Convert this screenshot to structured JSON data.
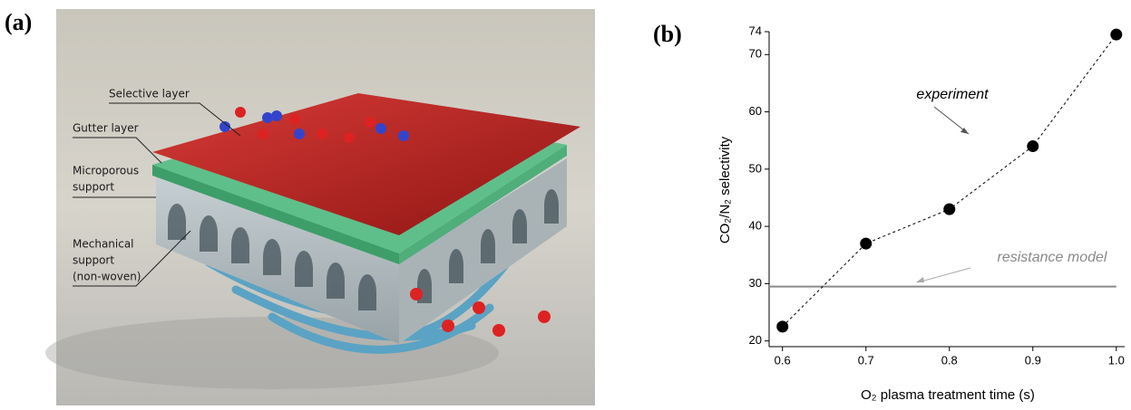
{
  "panel_a": {
    "panel_label": "(a)",
    "labels": {
      "selective": "Selective layer",
      "gutter": "Gutter layer",
      "microporous": [
        "Microporous",
        "support"
      ],
      "mechanical": [
        "Mechanical",
        "support",
        "(non-woven)"
      ]
    }
  },
  "chart_data": {
    "type": "line",
    "panel_label": "(b)",
    "x_label": "O₂ plasma treatment time (s)",
    "y_label": "CO₂/N₂ selectivity",
    "x": [
      0.6,
      0.7,
      0.8,
      0.9,
      1.0
    ],
    "values": [
      22.5,
      37,
      43,
      54,
      73.5
    ],
    "color": "#000000",
    "line_style": "dashed",
    "xlim": [
      0.584,
      1.01
    ],
    "ylim": [
      19,
      74
    ],
    "xticks": [
      0.6,
      0.7,
      0.8,
      0.9,
      {
        "value": 1,
        "label": "1.0"
      }
    ],
    "yticks": [
      20,
      30,
      40,
      50,
      60,
      70,
      74
    ],
    "reference_line": {
      "value": 29.5,
      "label": "resistance model",
      "color": "#8a8a8a"
    },
    "annotation": "experiment"
  }
}
